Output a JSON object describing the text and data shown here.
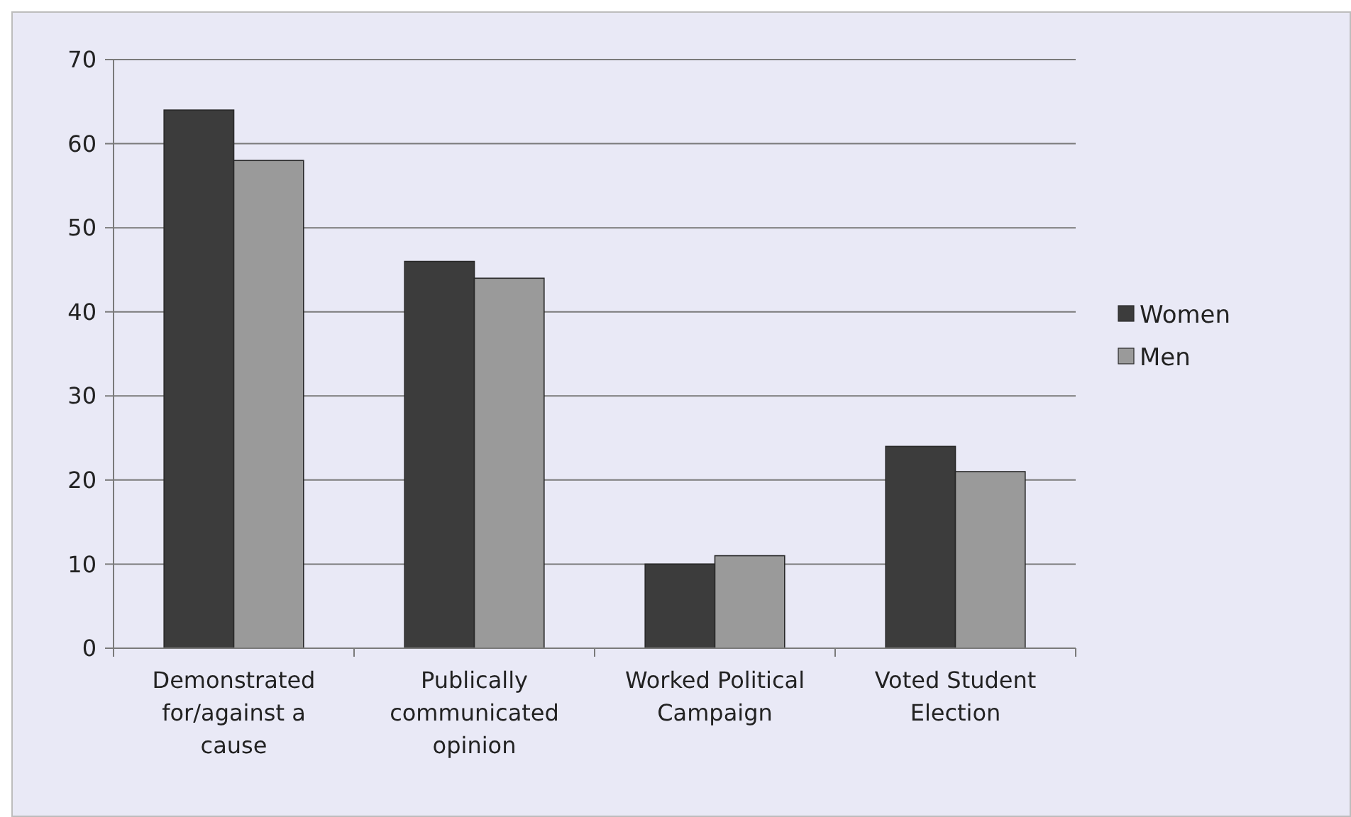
{
  "chart_data": {
    "type": "bar",
    "categories": [
      "Demonstrated for/against a cause",
      "Publically communicated opinion",
      "Worked Political Campaign",
      "Voted Student Election"
    ],
    "series": [
      {
        "name": "Women",
        "color": "#3c3c3c",
        "values": [
          64,
          46,
          10,
          24
        ]
      },
      {
        "name": "Men",
        "color": "#9a9a9a",
        "values": [
          58,
          44,
          11,
          21
        ]
      }
    ],
    "ylim": [
      0,
      70
    ],
    "yticks": [
      0,
      10,
      20,
      30,
      40,
      50,
      60,
      70
    ],
    "grid": "y",
    "legend": "right"
  }
}
